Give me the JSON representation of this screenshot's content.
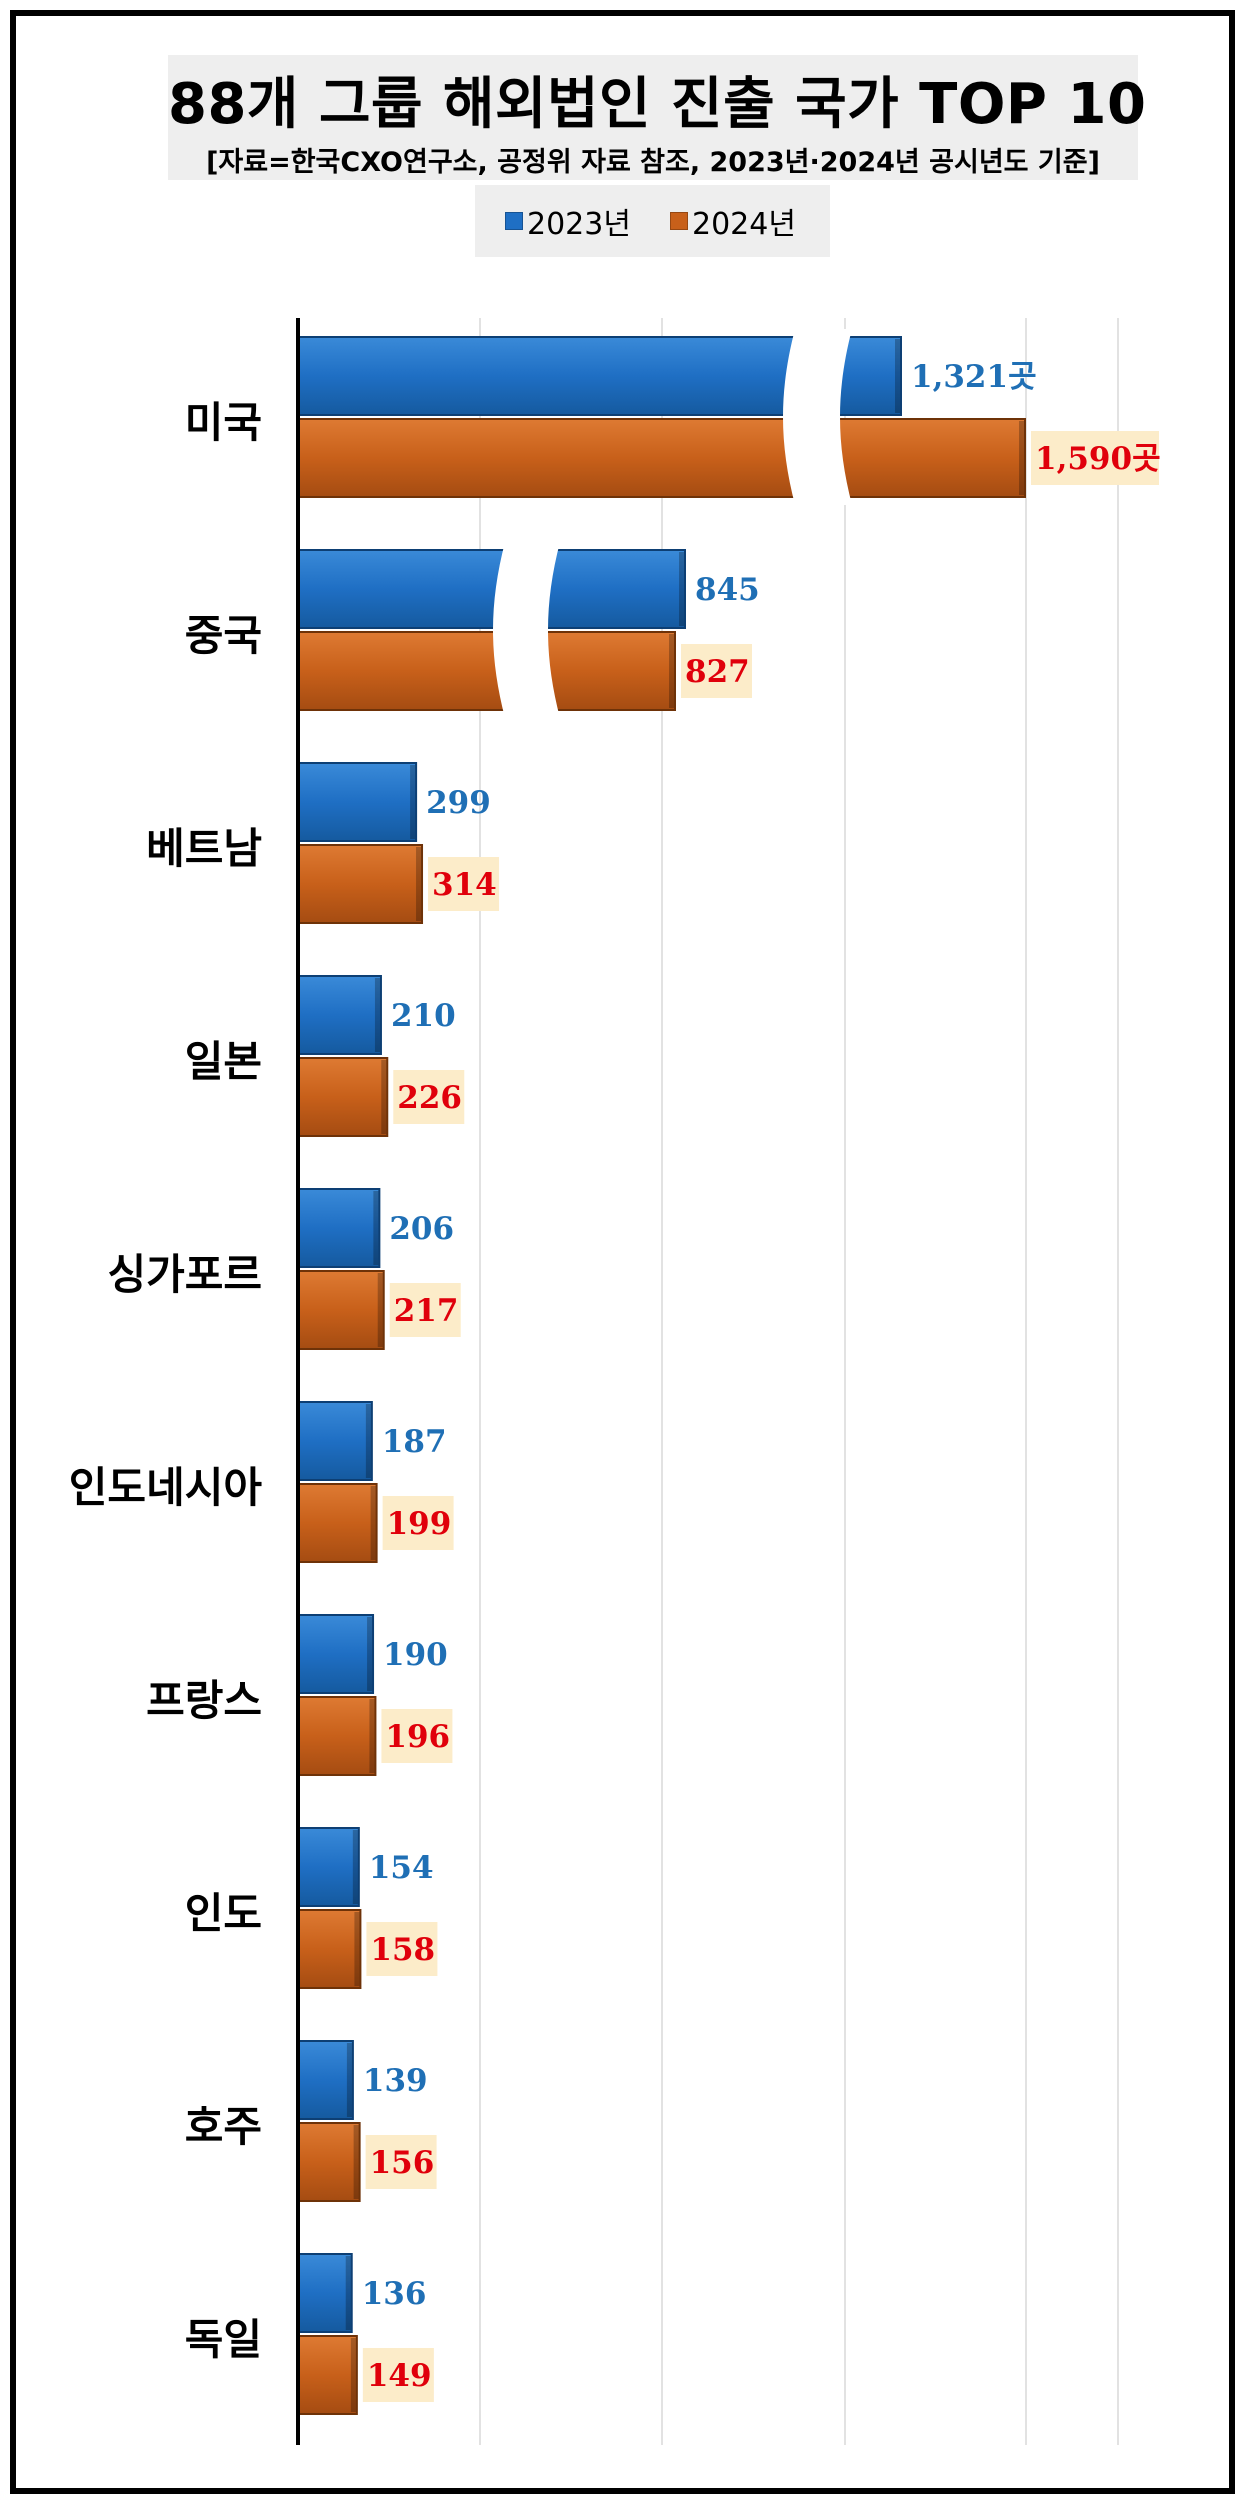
{
  "title": "88개 그룹 해외법인 진출 국가 TOP 10",
  "subtitle": "[자료=한국CXO연구소, 공정위 자료 참조, 2023년·2024년 공시년도 기준]",
  "legend": [
    {
      "label": "2023년",
      "color": "#1f6fc4"
    },
    {
      "label": "2024년",
      "color": "#c8601a"
    }
  ],
  "chart_data": {
    "type": "bar",
    "orientation": "horizontal",
    "categories": [
      "미국",
      "중국",
      "베트남",
      "일본",
      "싱가포르",
      "인도네시아",
      "프랑스",
      "인도",
      "호주",
      "독일"
    ],
    "series": [
      {
        "name": "2023년",
        "values": [
          1321,
          845,
          299,
          210,
          206,
          187,
          190,
          154,
          139,
          136
        ],
        "labels": [
          "1,321곳",
          "845",
          "299",
          "210",
          "206",
          "187",
          "190",
          "154",
          "139",
          "136"
        ]
      },
      {
        "name": "2024년",
        "values": [
          1590,
          827,
          314,
          226,
          217,
          199,
          196,
          158,
          156,
          149
        ],
        "labels": [
          "1,590곳",
          "827",
          "314",
          "226",
          "217",
          "199",
          "196",
          "158",
          "156",
          "149"
        ]
      }
    ],
    "axis_breaks": [
      "미국",
      "중국"
    ],
    "grid": true,
    "legend_position": "top"
  }
}
